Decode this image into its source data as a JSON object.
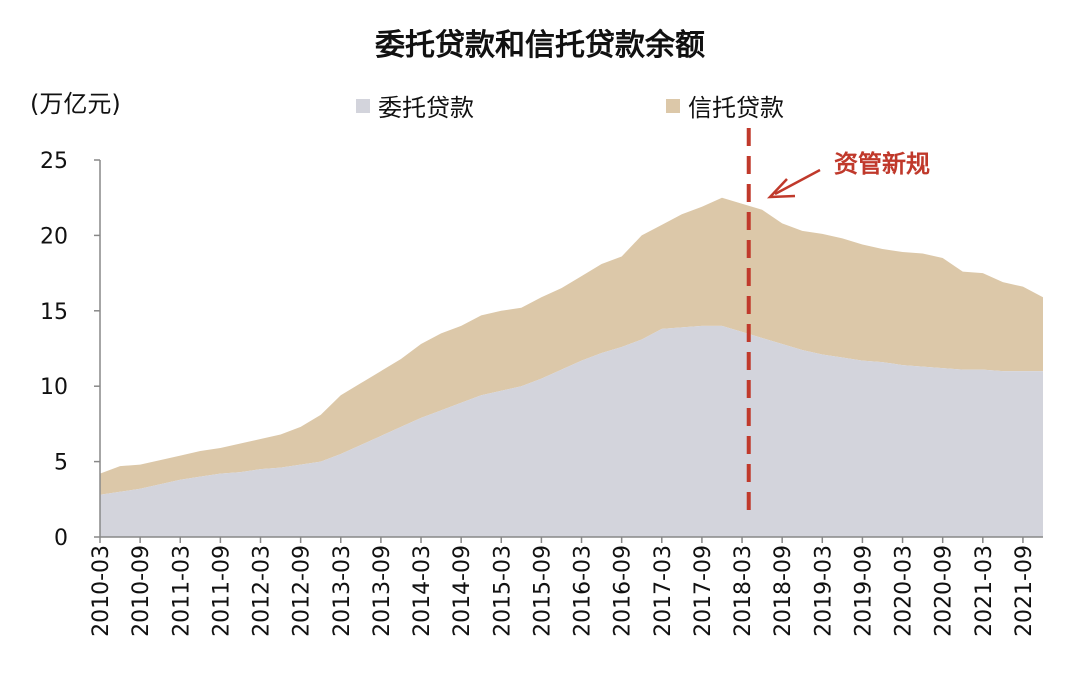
{
  "chart_data": {
    "type": "area",
    "title": "委托贷款和信托贷款余额",
    "unit_label": "(万亿元)",
    "ylim": [
      0,
      25
    ],
    "yticks": [
      0,
      5,
      10,
      15,
      20,
      25
    ],
    "xlim": [
      "2010-03",
      "2021-12"
    ],
    "xticks": [
      "2010-03",
      "2010-09",
      "2011-03",
      "2011-09",
      "2012-03",
      "2012-09",
      "2013-03",
      "2013-09",
      "2014-03",
      "2014-09",
      "2015-03",
      "2015-09",
      "2016-03",
      "2016-09",
      "2017-03",
      "2017-09",
      "2018-03",
      "2018-09",
      "2019-03",
      "2019-09",
      "2020-03",
      "2020-09",
      "2021-03",
      "2021-09"
    ],
    "stacked": true,
    "legend": "top",
    "grid": false,
    "x": [
      "2010-03",
      "2010-06",
      "2010-09",
      "2010-12",
      "2011-03",
      "2011-06",
      "2011-09",
      "2011-12",
      "2012-03",
      "2012-06",
      "2012-09",
      "2012-12",
      "2013-03",
      "2013-06",
      "2013-09",
      "2013-12",
      "2014-03",
      "2014-06",
      "2014-09",
      "2014-12",
      "2015-03",
      "2015-06",
      "2015-09",
      "2015-12",
      "2016-03",
      "2016-06",
      "2016-09",
      "2016-12",
      "2017-03",
      "2017-06",
      "2017-09",
      "2017-12",
      "2018-03",
      "2018-06",
      "2018-09",
      "2018-12",
      "2019-03",
      "2019-06",
      "2019-09",
      "2019-12",
      "2020-03",
      "2020-06",
      "2020-09",
      "2020-12",
      "2021-03",
      "2021-06",
      "2021-09",
      "2021-12"
    ],
    "series": [
      {
        "name": "委托贷款",
        "color": "#d3d4dc",
        "values": [
          2.8,
          3.0,
          3.2,
          3.5,
          3.8,
          4.0,
          4.2,
          4.3,
          4.5,
          4.6,
          4.8,
          5.0,
          5.5,
          6.1,
          6.7,
          7.3,
          7.9,
          8.4,
          8.9,
          9.4,
          9.7,
          10.0,
          10.5,
          11.1,
          11.7,
          12.2,
          12.6,
          13.1,
          13.8,
          13.9,
          14.0,
          14.0,
          13.6,
          13.2,
          12.8,
          12.4,
          12.1,
          11.9,
          11.7,
          11.6,
          11.4,
          11.3,
          11.2,
          11.1,
          11.1,
          11.0,
          11.0,
          11.0
        ]
      },
      {
        "name": "信托贷款",
        "color": "#dcc8a9",
        "values": [
          1.4,
          1.7,
          1.6,
          1.6,
          1.6,
          1.7,
          1.7,
          1.9,
          2.0,
          2.2,
          2.5,
          3.1,
          3.9,
          4.1,
          4.3,
          4.5,
          4.9,
          5.1,
          5.1,
          5.3,
          5.3,
          5.2,
          5.4,
          5.4,
          5.6,
          5.9,
          6.0,
          6.9,
          6.9,
          7.5,
          7.9,
          8.5,
          8.5,
          8.5,
          8.0,
          7.9,
          8.0,
          7.9,
          7.7,
          7.5,
          7.5,
          7.5,
          7.3,
          6.5,
          6.4,
          5.9,
          5.6,
          4.9
        ]
      }
    ],
    "annotation": {
      "label": "资管新规",
      "x": "2018-04",
      "color": "#c0392b"
    }
  }
}
